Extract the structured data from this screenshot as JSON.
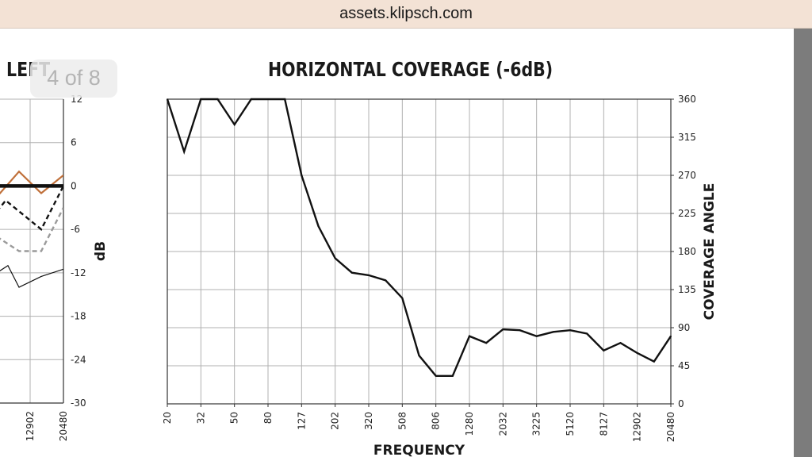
{
  "browser": {
    "url": "assets.klipsch.com"
  },
  "page_indicator": "4 of 8",
  "left_chart_title": "LEFT",
  "chart_data": [
    {
      "type": "line",
      "title": "LEFT",
      "ylabel": "dB",
      "ylim": [
        -30,
        12
      ],
      "y_ticks": [
        "12",
        "6",
        "0",
        "-6",
        "-12",
        "-18",
        "-24",
        "-30"
      ],
      "x_tick_labels": [
        "12902",
        "20480"
      ],
      "grid": true,
      "series": [
        {
          "style": "orange",
          "color": "#c0703a",
          "x": [
            0,
            1,
            2,
            3
          ],
          "values": [
            -1.5,
            2,
            -1,
            1.5
          ]
        },
        {
          "style": "thick-black",
          "color": "#111111",
          "x": [
            0,
            1,
            2,
            3
          ],
          "values": [
            0,
            0,
            0,
            0
          ]
        },
        {
          "style": "dashed-black",
          "color": "#111111",
          "x": [
            0,
            0.4,
            1,
            2,
            3
          ],
          "values": [
            -3.5,
            -2,
            -3.5,
            -6,
            0
          ]
        },
        {
          "style": "dashed-gray",
          "color": "#9a9a9a",
          "x": [
            0,
            1,
            2,
            3
          ],
          "values": [
            -7,
            -9,
            -9,
            -3
          ]
        },
        {
          "style": "thin-black",
          "color": "#111111",
          "x": [
            0,
            0.5,
            1,
            2,
            3
          ],
          "values": [
            -12,
            -11,
            -14,
            -12.5,
            -11.5
          ]
        }
      ]
    },
    {
      "type": "line",
      "title": "HORIZONTAL COVERAGE (-6dB)",
      "xlabel": "FREQUENCY",
      "ylabel": "COVERAGE ANGLE",
      "ylim": [
        0,
        360
      ],
      "y_ticks": [
        "0",
        "45",
        "90",
        "135",
        "180",
        "225",
        "270",
        "315",
        "360"
      ],
      "x_tick_labels": [
        "20",
        "32",
        "50",
        "80",
        "127",
        "202",
        "320",
        "508",
        "806",
        "1280",
        "2032",
        "3225",
        "5120",
        "8127",
        "12902",
        "20480"
      ],
      "grid": true,
      "series": [
        {
          "color": "#111111",
          "x": [
            0,
            0.5,
            1,
            1.5,
            2,
            2.5,
            3,
            3.5,
            4,
            4.5,
            5,
            5.5,
            6,
            6.5,
            7,
            7.5,
            8,
            8.5,
            9,
            9.5,
            10,
            10.5,
            11,
            11.5,
            12,
            12.5,
            13,
            13.5,
            14,
            14.5,
            15
          ],
          "values": [
            360,
            298,
            360,
            360,
            330,
            360,
            360,
            360,
            270,
            210,
            172,
            155,
            152,
            146,
            125,
            57,
            33,
            33,
            80,
            72,
            88,
            87,
            80,
            85,
            87,
            83,
            63,
            72,
            60,
            50,
            80
          ]
        }
      ]
    }
  ]
}
